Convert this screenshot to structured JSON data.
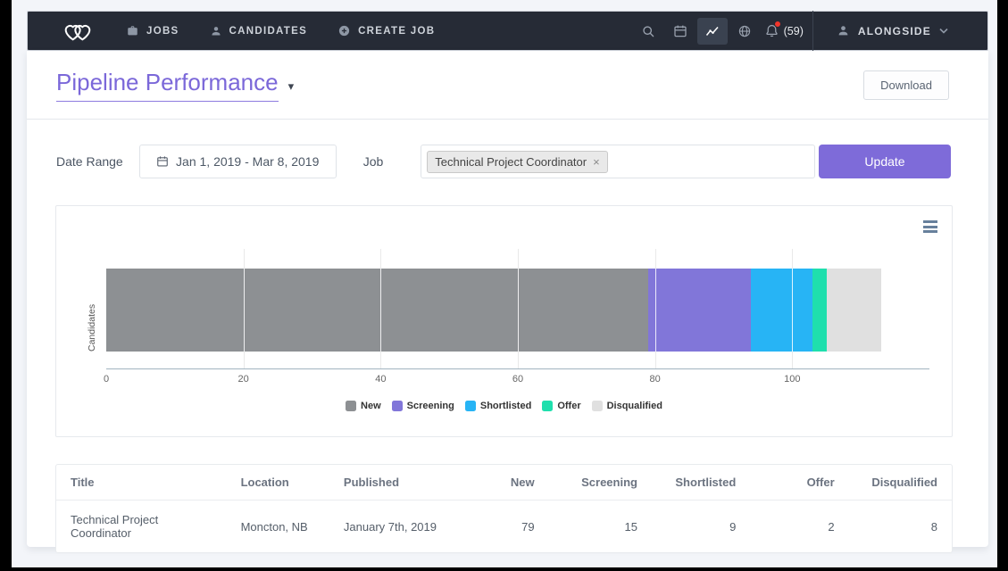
{
  "navbar": {
    "items": [
      {
        "label": "JOBS"
      },
      {
        "label": "CANDIDATES"
      },
      {
        "label": "CREATE JOB"
      }
    ],
    "notifications_count": "(59)",
    "account_label": "ALONGSIDE"
  },
  "header": {
    "title": "Pipeline Performance",
    "download_label": "Download"
  },
  "filters": {
    "date_range_label": "Date Range",
    "date_range_value": "Jan 1, 2019 - Mar 8, 2019",
    "job_label": "Job",
    "job_selected": "Technical Project Coordinator",
    "update_label": "Update"
  },
  "chart_data": {
    "type": "bar",
    "orientation": "horizontal",
    "stacked": true,
    "category_label": "Candidates",
    "series": [
      {
        "name": "New",
        "value": 79,
        "color": "#8d9093"
      },
      {
        "name": "Screening",
        "value": 15,
        "color": "#8176d9"
      },
      {
        "name": "Shortlisted",
        "value": 9,
        "color": "#27b4f5"
      },
      {
        "name": "Offer",
        "value": 2,
        "color": "#1fdfad"
      },
      {
        "name": "Disqualified",
        "value": 8,
        "color": "#e0e0e0"
      }
    ],
    "x_ticks": [
      0,
      20,
      40,
      60,
      80,
      100
    ],
    "x_max": 120,
    "legend_position": "bottom",
    "grid": true
  },
  "table": {
    "columns": [
      "Title",
      "Location",
      "Published",
      "New",
      "Screening",
      "Shortlisted",
      "Offer",
      "Disqualified"
    ],
    "rows": [
      [
        "Technical Project Coordinator",
        "Moncton, NB",
        "January 7th, 2019",
        "79",
        "15",
        "9",
        "2",
        "8"
      ]
    ]
  }
}
